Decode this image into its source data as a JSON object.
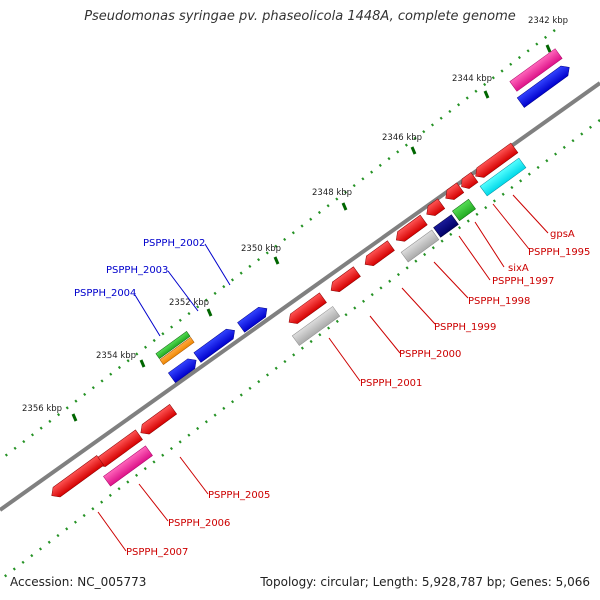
{
  "title": "Pseudomonas syringae pv. phaseolicola 1448A, complete genome",
  "footer": {
    "accession": "Accession: NC_005773",
    "stats": "Topology: circular; Length: 5,928,787 bp; Genes: 5,066"
  },
  "colors": {
    "backbone": "#808080",
    "tick": "#008000",
    "label_blue": "#0000cc",
    "label_red": "#cc0000"
  },
  "scale_labels": [
    "2342 kbp",
    "2344 kbp",
    "2346 kbp",
    "2348 kbp",
    "2350 kbp",
    "2352 kbp",
    "2354 kbp",
    "2356 kbp"
  ],
  "gene_labels_blue": [
    "PSPPH_2002",
    "PSPPH_2003",
    "PSPPH_2004"
  ],
  "gene_labels_red": [
    "gpsA",
    "PSPPH_1995",
    "sixA",
    "PSPPH_1997",
    "PSPPH_1998",
    "PSPPH_1999",
    "PSPPH_2000",
    "PSPPH_2001",
    "PSPPH_2005",
    "PSPPH_2006",
    "PSPPH_2007"
  ]
}
